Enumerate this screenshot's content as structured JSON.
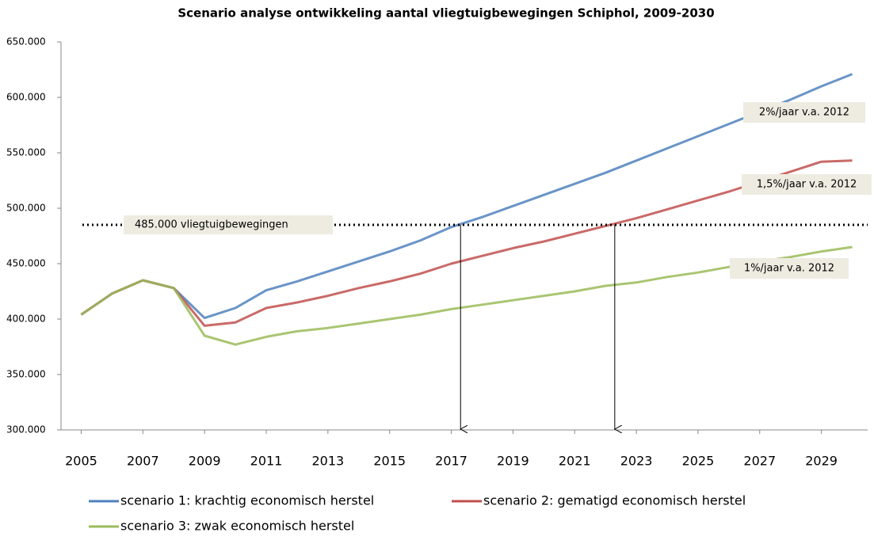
{
  "chart_data": {
    "type": "line",
    "title": "Scenario analyse ontwikkeling aantal vliegtuigbewegingen Schiphol, 2009-2030",
    "x": [
      2005,
      2006,
      2007,
      2008,
      2009,
      2010,
      2011,
      2012,
      2013,
      2014,
      2015,
      2016,
      2017,
      2018,
      2019,
      2020,
      2021,
      2022,
      2023,
      2024,
      2025,
      2026,
      2027,
      2028,
      2029,
      2030
    ],
    "series": [
      {
        "name": "scenario 1: krachtig economisch herstel",
        "color": "#4f81bd",
        "values": [
          404000,
          423000,
          435000,
          428000,
          401000,
          410000,
          426000,
          434000,
          443000,
          452000,
          461000,
          471000,
          483000,
          492000,
          502000,
          512000,
          522000,
          532000,
          543000,
          554000,
          565000,
          576000,
          587000,
          598000,
          610000,
          621000
        ]
      },
      {
        "name": "scenario 2: gematigd economisch herstel",
        "color": "#c0504d",
        "values": [
          404000,
          423000,
          435000,
          428000,
          394000,
          397000,
          410000,
          415000,
          421000,
          428000,
          434000,
          441000,
          450000,
          457000,
          464000,
          470000,
          477000,
          484000,
          491000,
          499000,
          507000,
          515000,
          524000,
          533000,
          542000,
          543000
        ]
      },
      {
        "name": "scenario 3: zwak economisch herstel",
        "color": "#9bbb59",
        "values": [
          404000,
          423000,
          435000,
          428000,
          385000,
          377000,
          384000,
          389000,
          392000,
          396000,
          400000,
          404000,
          409000,
          413000,
          417000,
          421000,
          425000,
          430000,
          433000,
          438000,
          442000,
          447000,
          452000,
          456000,
          461000,
          465000
        ]
      }
    ],
    "xlim": [
      2004.5,
      2030.5
    ],
    "xticks": [
      2005,
      2007,
      2009,
      2011,
      2013,
      2015,
      2017,
      2019,
      2021,
      2023,
      2025,
      2027,
      2029
    ],
    "ylim": [
      300000,
      650000
    ],
    "yticks": [
      {
        "value": 300000,
        "label": "300.000"
      },
      {
        "value": 350000,
        "label": "350.000"
      },
      {
        "value": 400000,
        "label": "400.000"
      },
      {
        "value": 450000,
        "label": "450.000"
      },
      {
        "value": 500000,
        "label": "500.000"
      },
      {
        "value": 550000,
        "label": "550.000"
      },
      {
        "value": 600000,
        "label": "600.000"
      },
      {
        "value": 650000,
        "label": "650.000"
      }
    ],
    "reference_line": {
      "value": 485000,
      "label": "485.000 vliegtuigbewegingen",
      "crossings": [
        2017.3,
        2022.3
      ]
    },
    "annotations": [
      "2%/jaar v.a. 2012",
      "1,5%/jaar v.a. 2012",
      "1%/jaar v.a. 2012"
    ]
  }
}
